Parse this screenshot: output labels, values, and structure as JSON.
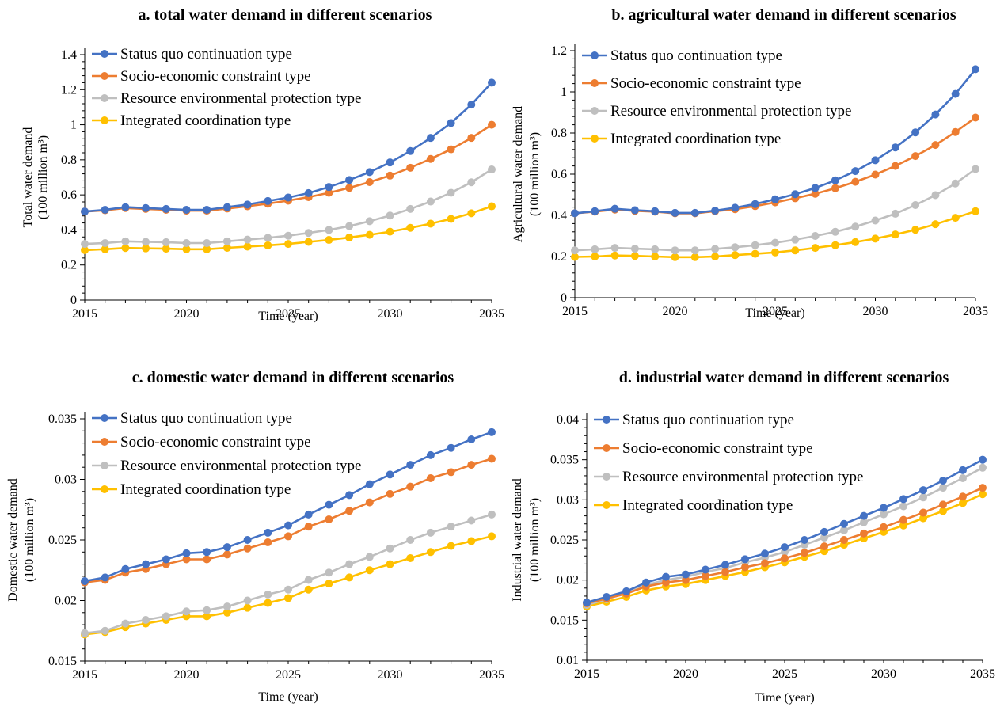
{
  "colors": {
    "status_quo": "#4472C4",
    "socio_economic": "#ED7D31",
    "resource_env": "#BFBFBF",
    "integrated": "#FFC000"
  },
  "legend_labels": [
    "Status quo continuation type",
    "Socio-economic constraint type",
    "Resource environmental protection type",
    "Integrated coordination type"
  ],
  "chart_data": [
    {
      "type": "line",
      "title": "a. total water demand in different scenarios",
      "xlabel": "Time (year)",
      "ylabel": "Total water demand",
      "ylabel2": "(100 million m³)",
      "x": [
        2015,
        2016,
        2017,
        2018,
        2019,
        2020,
        2021,
        2022,
        2023,
        2024,
        2025,
        2026,
        2027,
        2028,
        2029,
        2030,
        2031,
        2032,
        2033,
        2034,
        2035
      ],
      "xticks": [
        "2015",
        "2020",
        "2025",
        "2030",
        "2035"
      ],
      "ylim": [
        0,
        1.4
      ],
      "yticks": [
        "0",
        "0.2",
        "0.4",
        "0.6",
        "0.8",
        "1",
        "1.2",
        "1.4"
      ],
      "legend_position": "top-left",
      "series": [
        {
          "name": "Status quo continuation type",
          "values": [
            0.505,
            0.515,
            0.53,
            0.525,
            0.52,
            0.515,
            0.515,
            0.53,
            0.545,
            0.565,
            0.585,
            0.61,
            0.645,
            0.685,
            0.73,
            0.785,
            0.85,
            0.925,
            1.01,
            1.115,
            1.24
          ]
        },
        {
          "name": "Socio-economic constraint type",
          "values": [
            0.505,
            0.512,
            0.525,
            0.52,
            0.515,
            0.51,
            0.51,
            0.522,
            0.535,
            0.55,
            0.567,
            0.587,
            0.612,
            0.64,
            0.673,
            0.71,
            0.755,
            0.805,
            0.86,
            0.925,
            1.0
          ]
        },
        {
          "name": "Resource environmental protection type",
          "values": [
            0.32,
            0.325,
            0.335,
            0.332,
            0.33,
            0.325,
            0.325,
            0.335,
            0.345,
            0.355,
            0.367,
            0.383,
            0.4,
            0.422,
            0.45,
            0.482,
            0.52,
            0.562,
            0.612,
            0.672,
            0.745
          ]
        },
        {
          "name": "Integrated coordination type",
          "values": [
            0.285,
            0.29,
            0.297,
            0.295,
            0.293,
            0.29,
            0.29,
            0.298,
            0.305,
            0.312,
            0.32,
            0.332,
            0.343,
            0.357,
            0.372,
            0.39,
            0.412,
            0.436,
            0.463,
            0.495,
            0.535
          ]
        }
      ]
    },
    {
      "type": "line",
      "title": "b. agricultural water demand in different scenarios",
      "xlabel": "Time (year)",
      "ylabel": "Agricultural water demand",
      "ylabel2": "(100 million m³)",
      "x": [
        2015,
        2016,
        2017,
        2018,
        2019,
        2020,
        2021,
        2022,
        2023,
        2024,
        2025,
        2026,
        2027,
        2028,
        2029,
        2030,
        2031,
        2032,
        2033,
        2034,
        2035
      ],
      "xticks": [
        "2015",
        "2020",
        "2025",
        "2030",
        "2035"
      ],
      "ylim": [
        0,
        1.2
      ],
      "yticks": [
        "0",
        "0.2",
        "0.4",
        "0.6",
        "0.8",
        "1",
        "1.2"
      ],
      "legend_position": "top-left",
      "series": [
        {
          "name": "Status quo continuation type",
          "values": [
            0.41,
            0.42,
            0.432,
            0.425,
            0.42,
            0.412,
            0.412,
            0.423,
            0.437,
            0.455,
            0.478,
            0.503,
            0.533,
            0.57,
            0.615,
            0.668,
            0.73,
            0.803,
            0.89,
            0.99,
            1.11
          ]
        },
        {
          "name": "Socio-economic constraint type",
          "values": [
            0.41,
            0.418,
            0.428,
            0.422,
            0.418,
            0.41,
            0.41,
            0.42,
            0.43,
            0.445,
            0.463,
            0.483,
            0.505,
            0.532,
            0.563,
            0.598,
            0.64,
            0.688,
            0.742,
            0.805,
            0.875
          ]
        },
        {
          "name": "Resource environmental protection type",
          "values": [
            0.23,
            0.235,
            0.242,
            0.238,
            0.235,
            0.23,
            0.23,
            0.237,
            0.245,
            0.255,
            0.267,
            0.282,
            0.3,
            0.32,
            0.345,
            0.375,
            0.408,
            0.45,
            0.498,
            0.555,
            0.625
          ]
        },
        {
          "name": "Integrated coordination type",
          "values": [
            0.198,
            0.2,
            0.205,
            0.203,
            0.2,
            0.197,
            0.197,
            0.2,
            0.207,
            0.213,
            0.22,
            0.23,
            0.242,
            0.255,
            0.27,
            0.287,
            0.307,
            0.33,
            0.357,
            0.388,
            0.42
          ]
        }
      ]
    },
    {
      "type": "line",
      "title": "c. domestic water demand in different scenarios",
      "xlabel": "Time (year)",
      "ylabel": "Domestic water demand",
      "ylabel2": "(100 million m³)",
      "x": [
        2015,
        2016,
        2017,
        2018,
        2019,
        2020,
        2021,
        2022,
        2023,
        2024,
        2025,
        2026,
        2027,
        2028,
        2029,
        2030,
        2031,
        2032,
        2033,
        2034,
        2035
      ],
      "xticks": [
        "2015",
        "2020",
        "2025",
        "2030",
        "2035"
      ],
      "ylim": [
        0.015,
        0.035
      ],
      "yticks": [
        "0.015",
        "0.02",
        "0.025",
        "0.03",
        "0.035"
      ],
      "legend_position": "top-left",
      "series": [
        {
          "name": "Status quo continuation type",
          "values": [
            0.0216,
            0.0219,
            0.0226,
            0.023,
            0.0234,
            0.0239,
            0.024,
            0.0244,
            0.025,
            0.0256,
            0.0262,
            0.0271,
            0.0279,
            0.0287,
            0.0296,
            0.0304,
            0.0312,
            0.032,
            0.0326,
            0.0333,
            0.0339
          ]
        },
        {
          "name": "Socio-economic constraint type",
          "values": [
            0.0215,
            0.0217,
            0.0223,
            0.0226,
            0.023,
            0.0234,
            0.0234,
            0.0238,
            0.0243,
            0.0248,
            0.0253,
            0.0261,
            0.0267,
            0.0274,
            0.0281,
            0.0288,
            0.0294,
            0.0301,
            0.0306,
            0.0312,
            0.0317
          ]
        },
        {
          "name": "Resource environmental protection type",
          "values": [
            0.0173,
            0.0175,
            0.0181,
            0.0184,
            0.0187,
            0.0191,
            0.0192,
            0.0195,
            0.02,
            0.0205,
            0.0209,
            0.0217,
            0.0223,
            0.023,
            0.0236,
            0.0243,
            0.025,
            0.0256,
            0.0261,
            0.0266,
            0.0271
          ]
        },
        {
          "name": "Integrated coordination type",
          "values": [
            0.0172,
            0.0174,
            0.0178,
            0.0181,
            0.0184,
            0.0187,
            0.0187,
            0.019,
            0.0194,
            0.0198,
            0.0202,
            0.0209,
            0.0214,
            0.0219,
            0.0225,
            0.023,
            0.0235,
            0.024,
            0.0245,
            0.0249,
            0.0253
          ]
        }
      ]
    },
    {
      "type": "line",
      "title": "d. industrial water demand in different scenarios",
      "xlabel": "Time (year)",
      "ylabel": "Industrial water demand",
      "ylabel2": "(100 million m³)",
      "x": [
        2015,
        2016,
        2017,
        2018,
        2019,
        2020,
        2021,
        2022,
        2023,
        2024,
        2025,
        2026,
        2027,
        2028,
        2029,
        2030,
        2031,
        2032,
        2033,
        2034,
        2035
      ],
      "xticks": [
        "2015",
        "2020",
        "2025",
        "2030",
        "2035"
      ],
      "ylim": [
        0.01,
        0.04
      ],
      "yticks": [
        "0.01",
        "0.015",
        "0.02",
        "0.025",
        "0.03",
        "0.035",
        "0.04"
      ],
      "legend_position": "top-left",
      "series": [
        {
          "name": "Status quo continuation type",
          "values": [
            0.0172,
            0.0179,
            0.0186,
            0.0197,
            0.0204,
            0.0207,
            0.0213,
            0.0219,
            0.0226,
            0.0233,
            0.0241,
            0.025,
            0.026,
            0.027,
            0.028,
            0.029,
            0.0301,
            0.0312,
            0.0324,
            0.0337,
            0.035
          ]
        },
        {
          "name": "Socio-economic constraint type",
          "values": [
            0.0171,
            0.0177,
            0.0183,
            0.0192,
            0.0197,
            0.02,
            0.0205,
            0.021,
            0.0216,
            0.0221,
            0.0227,
            0.0234,
            0.0242,
            0.025,
            0.0258,
            0.0266,
            0.0275,
            0.0284,
            0.0294,
            0.0304,
            0.0315
          ]
        },
        {
          "name": "Resource environmental protection type",
          "values": [
            0.0169,
            0.0176,
            0.0184,
            0.0194,
            0.02,
            0.0204,
            0.021,
            0.0215,
            0.0222,
            0.0228,
            0.0235,
            0.0244,
            0.0253,
            0.0262,
            0.0272,
            0.0282,
            0.0292,
            0.0303,
            0.0315,
            0.0327,
            0.034
          ]
        },
        {
          "name": "Integrated coordination type",
          "values": [
            0.0167,
            0.0173,
            0.0179,
            0.0187,
            0.0192,
            0.0195,
            0.02,
            0.0205,
            0.021,
            0.0216,
            0.0222,
            0.0229,
            0.0236,
            0.0244,
            0.0252,
            0.026,
            0.0268,
            0.0277,
            0.0286,
            0.0296,
            0.0307
          ]
        }
      ]
    }
  ]
}
